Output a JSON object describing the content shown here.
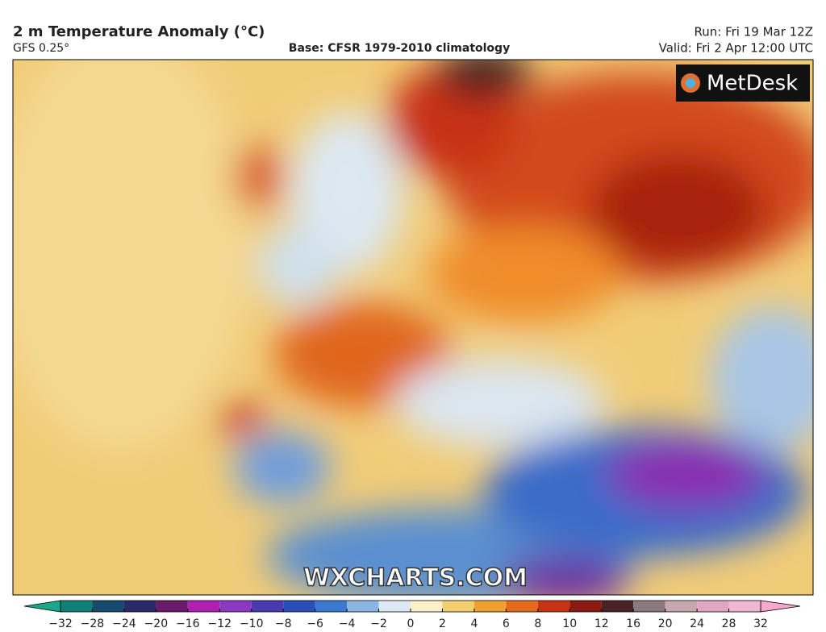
{
  "header": {
    "title": "2 m Temperature Anomaly (°C)",
    "model": "GFS 0.25°",
    "base": "Base: CFSR 1979-2010 climatology",
    "run": "Run: Fri 19 Mar 12Z",
    "valid": "Valid: Fri 2 Apr 12:00 UTC"
  },
  "map": {
    "logo": "MetDesk",
    "watermark": "WXCHARTS.COM"
  },
  "colorbar": {
    "ticks": [
      {
        "value": -32,
        "label": "−32"
      },
      {
        "value": -28,
        "label": "−28"
      },
      {
        "value": -24,
        "label": "−24"
      },
      {
        "value": -20,
        "label": "−20"
      },
      {
        "value": -16,
        "label": "−16"
      },
      {
        "value": -12,
        "label": "−12"
      },
      {
        "value": -10,
        "label": "−10"
      },
      {
        "value": -8,
        "label": "−8"
      },
      {
        "value": -6,
        "label": "−6"
      },
      {
        "value": -4,
        "label": "−4"
      },
      {
        "value": -2,
        "label": "−2"
      },
      0,
      2,
      4,
      6,
      8,
      10,
      12,
      16,
      20,
      24,
      28,
      32
    ],
    "colors": [
      "#0f7f7a",
      "#164a6e",
      "#2a2a6a",
      "#6a1a6a",
      "#b020b0",
      "#8a3ac0",
      "#4a3ab0",
      "#2a50b8",
      "#3a7ad0",
      "#8cb4e0",
      "#dce8f4",
      "#fbf0c8",
      "#f4cf6e",
      "#f0a030",
      "#e46a1c",
      "#c83214",
      "#8a1a12",
      "#4a2424",
      "#8a7a80",
      "#c8a8b0",
      "#e0a8c0",
      "#f0b8d0"
    ],
    "low_color": "#1aa88a",
    "high_color": "#f4a8cc"
  }
}
